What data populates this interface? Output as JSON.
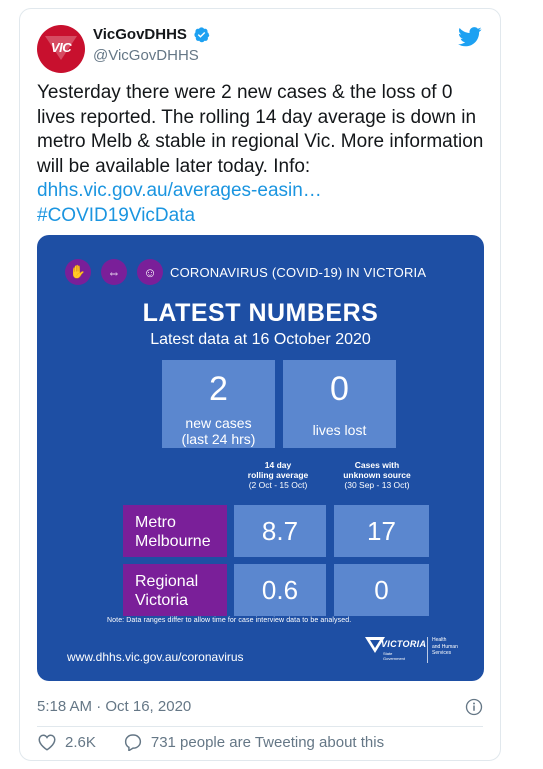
{
  "user": {
    "display_name": "VicGovDHHS",
    "handle": "@VicGovDHHS",
    "avatar_text": "VIC"
  },
  "tweet": {
    "text_main": "Yesterday there were 2 new cases & the loss of 0 lives reported. The rolling 14 day average is down in metro Melb & stable in regional Vic. More information will be available later today. Info: ",
    "link": "dhhs.vic.gov.au/averages-easin…",
    "hashtag": "#COVID19VicData"
  },
  "graphic": {
    "header": "CORONAVIRUS (COVID-19) IN VICTORIA",
    "title": "LATEST NUMBERS",
    "subtitle": "Latest data at 16 October 2020",
    "new_cases": {
      "value": "2",
      "label_line1": "new cases",
      "label_line2": "(last 24 hrs)"
    },
    "lives_lost": {
      "value": "0",
      "label": "lives lost"
    },
    "col1": {
      "line1": "14 day",
      "line2": "rolling average",
      "line3": "(2 Oct - 15 Oct)"
    },
    "col2": {
      "line1": "Cases with",
      "line2": "unknown source",
      "line3": "(30 Sep - 13 Oct)"
    },
    "rows": [
      {
        "label_line1": "Metro",
        "label_line2": "Melbourne",
        "avg": "8.7",
        "unknown": "17"
      },
      {
        "label_line1": "Regional",
        "label_line2": "Victoria",
        "avg": "0.6",
        "unknown": "0"
      }
    ],
    "note": "Note: Data ranges differ to allow time for case interview data to be analysed.",
    "url": "www.dhhs.vic.gov.au/coronavirus",
    "logo": {
      "name": "VICTORIA",
      "sub1": "State",
      "sub2": "Government",
      "dept1": "Health",
      "dept2": "and Human",
      "dept3": "Services"
    }
  },
  "footer": {
    "timestamp": "5:18 AM · Oct 16, 2020",
    "likes": "2.6K",
    "talking": "731 people are Tweeting about this"
  },
  "colors": {
    "twitter_blue": "#1b95e0",
    "graphic_bg": "#1e4fa4",
    "stat_box": "#5b87cf",
    "purple": "#7a1f99",
    "vic_red": "#c8102e"
  },
  "icons": [
    "twitter-bird-icon",
    "verified-badge-icon",
    "info-icon",
    "heart-icon",
    "speech-bubble-icon",
    "hand-wash-icon",
    "distancing-icon",
    "mask-icon"
  ]
}
